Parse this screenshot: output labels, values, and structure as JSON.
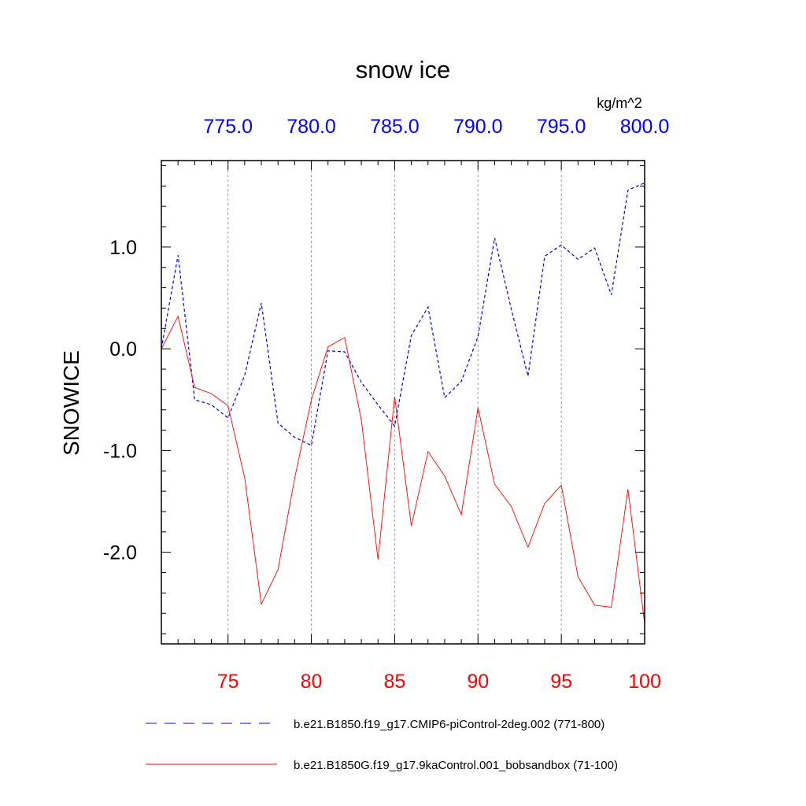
{
  "chart_data": {
    "type": "line",
    "title": "snow ice",
    "ylabel": "SNOWICE",
    "units": "kg/m^2",
    "ylim": [
      -2.9,
      1.85
    ],
    "yticks": [
      1.0,
      0.0,
      -1.0,
      -2.0
    ],
    "ytick_labels": [
      "1.0",
      "0.0",
      "-1.0",
      "-2.0"
    ],
    "bottom_axis": {
      "range": [
        71,
        100
      ],
      "ticks": [
        75,
        80,
        85,
        90,
        95,
        100
      ],
      "tick_labels": [
        "75",
        "80",
        "85",
        "90",
        "95",
        "100"
      ],
      "color": "#ff0000"
    },
    "top_axis": {
      "range": [
        771,
        800
      ],
      "ticks": [
        775,
        780,
        785,
        790,
        795,
        800
      ],
      "tick_labels": [
        "775.0",
        "780.0",
        "785.0",
        "790.0",
        "795.0",
        "800.0"
      ],
      "color": "#0000ff"
    },
    "grid": "vertical dashed",
    "series": [
      {
        "name": "b.e21.B1850.f19_g17.CMIP6-piControl-2deg.002 (771-800)",
        "color": "#0000ff",
        "style": "dashed",
        "axis": "top",
        "x": [
          771,
          772,
          773,
          774,
          775,
          776,
          777,
          778,
          779,
          780,
          781,
          782,
          783,
          784,
          785,
          786,
          787,
          788,
          789,
          790,
          791,
          792,
          793,
          794,
          795,
          796,
          797,
          798,
          799,
          800
        ],
        "values": [
          0.0,
          0.92,
          -0.5,
          -0.55,
          -0.68,
          -0.26,
          0.45,
          -0.73,
          -0.87,
          -0.95,
          -0.02,
          -0.03,
          -0.33,
          -0.55,
          -0.76,
          0.13,
          0.41,
          -0.48,
          -0.32,
          0.12,
          1.09,
          0.39,
          -0.27,
          0.91,
          1.02,
          0.88,
          0.99,
          0.53,
          1.56,
          1.63
        ]
      },
      {
        "name": "b.e21.B1850G.f19_g17.9kaControl.001_bobsandbox (71-100)",
        "color": "#ff0000",
        "style": "solid",
        "axis": "bottom",
        "x": [
          71,
          72,
          73,
          74,
          75,
          76,
          77,
          78,
          79,
          80,
          81,
          82,
          83,
          84,
          85,
          86,
          87,
          88,
          89,
          90,
          91,
          92,
          93,
          94,
          95,
          96,
          97,
          98,
          99,
          100
        ],
        "values": [
          0.0,
          0.32,
          -0.38,
          -0.44,
          -0.56,
          -1.27,
          -2.51,
          -2.17,
          -1.27,
          -0.5,
          0.02,
          0.11,
          -0.7,
          -2.07,
          -0.47,
          -1.74,
          -1.01,
          -1.25,
          -1.63,
          -0.58,
          -1.33,
          -1.55,
          -1.95,
          -1.52,
          -1.34,
          -2.24,
          -2.52,
          -2.54,
          -1.38,
          -2.7
        ]
      }
    ]
  }
}
